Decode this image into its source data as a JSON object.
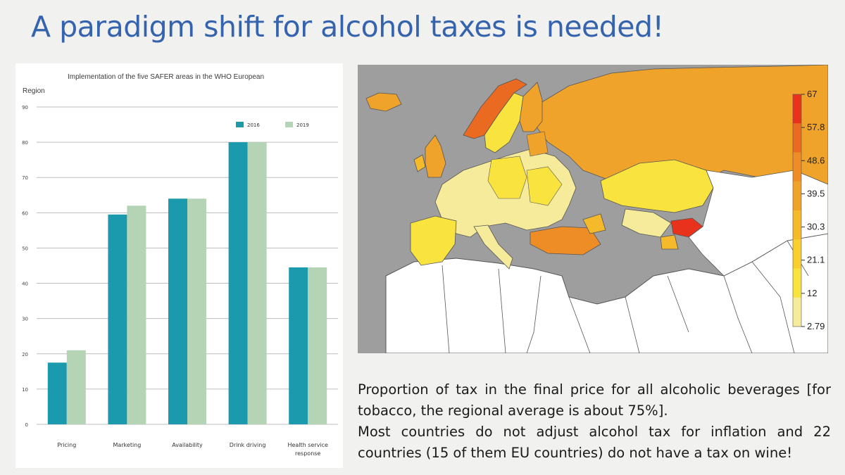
{
  "title": "A paradigm shift for alcohol taxes is needed!",
  "chart_data": {
    "type": "bar",
    "title": "Implementation of the five SAFER areas in the WHO European Region",
    "xlabel": "",
    "ylabel": "",
    "ylim": [
      0,
      90
    ],
    "yticks": [
      0,
      10,
      20,
      30,
      40,
      50,
      60,
      70,
      80,
      90
    ],
    "grid": true,
    "legend_position": "top-right",
    "categories": [
      "Pricing",
      "Marketing",
      "Availability",
      "Drink driving",
      "Health service response"
    ],
    "series": [
      {
        "name": "2016",
        "color": "#1b9aae",
        "values": [
          17.5,
          59.5,
          64,
          80,
          44.5
        ]
      },
      {
        "name": "2019",
        "color": "#b5d3b5",
        "values": [
          21,
          62,
          64,
          80,
          44.5
        ]
      }
    ]
  },
  "map": {
    "legend_labels": [
      "67",
      "57.8",
      "48.6",
      "39.5",
      "30.3",
      "21.1",
      "12",
      "2.79"
    ],
    "legend_colors": [
      "#e8321c",
      "#ea6a21",
      "#ee8c26",
      "#f0a32a",
      "#f5b92c",
      "#f8cf2e",
      "#f9e33f",
      "#f6eb9a"
    ],
    "no_data_color": "#9e9e9e",
    "background_color": "#ffffff"
  },
  "caption": {
    "line1": "Proportion of tax in the final price for all alcoholic beverages [for tobacco, the regional average is about 75%].",
    "line2": "Most countries do not adjust alcohol tax for inflation and 22 countries (15 of them EU countries) do not have a tax on wine!"
  }
}
